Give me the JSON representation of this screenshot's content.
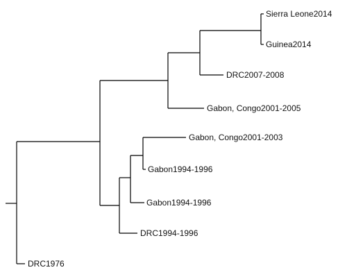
{
  "tree": {
    "leaves": {
      "sierra_leone": "Sierra Leone2014",
      "guinea": "Guinea2014",
      "drc_2007": "DRC2007-2008",
      "gabon_congo_2005": "Gabon, Congo2001-2005",
      "gabon_congo_2003": "Gabon, Congo2001-2003",
      "gabon_1996_a": "Gabon1994-1996",
      "gabon_1996_b": "Gabon1994-1996",
      "drc_1994": "DRC1994-1996",
      "drc_1976": "DRC1976"
    }
  }
}
